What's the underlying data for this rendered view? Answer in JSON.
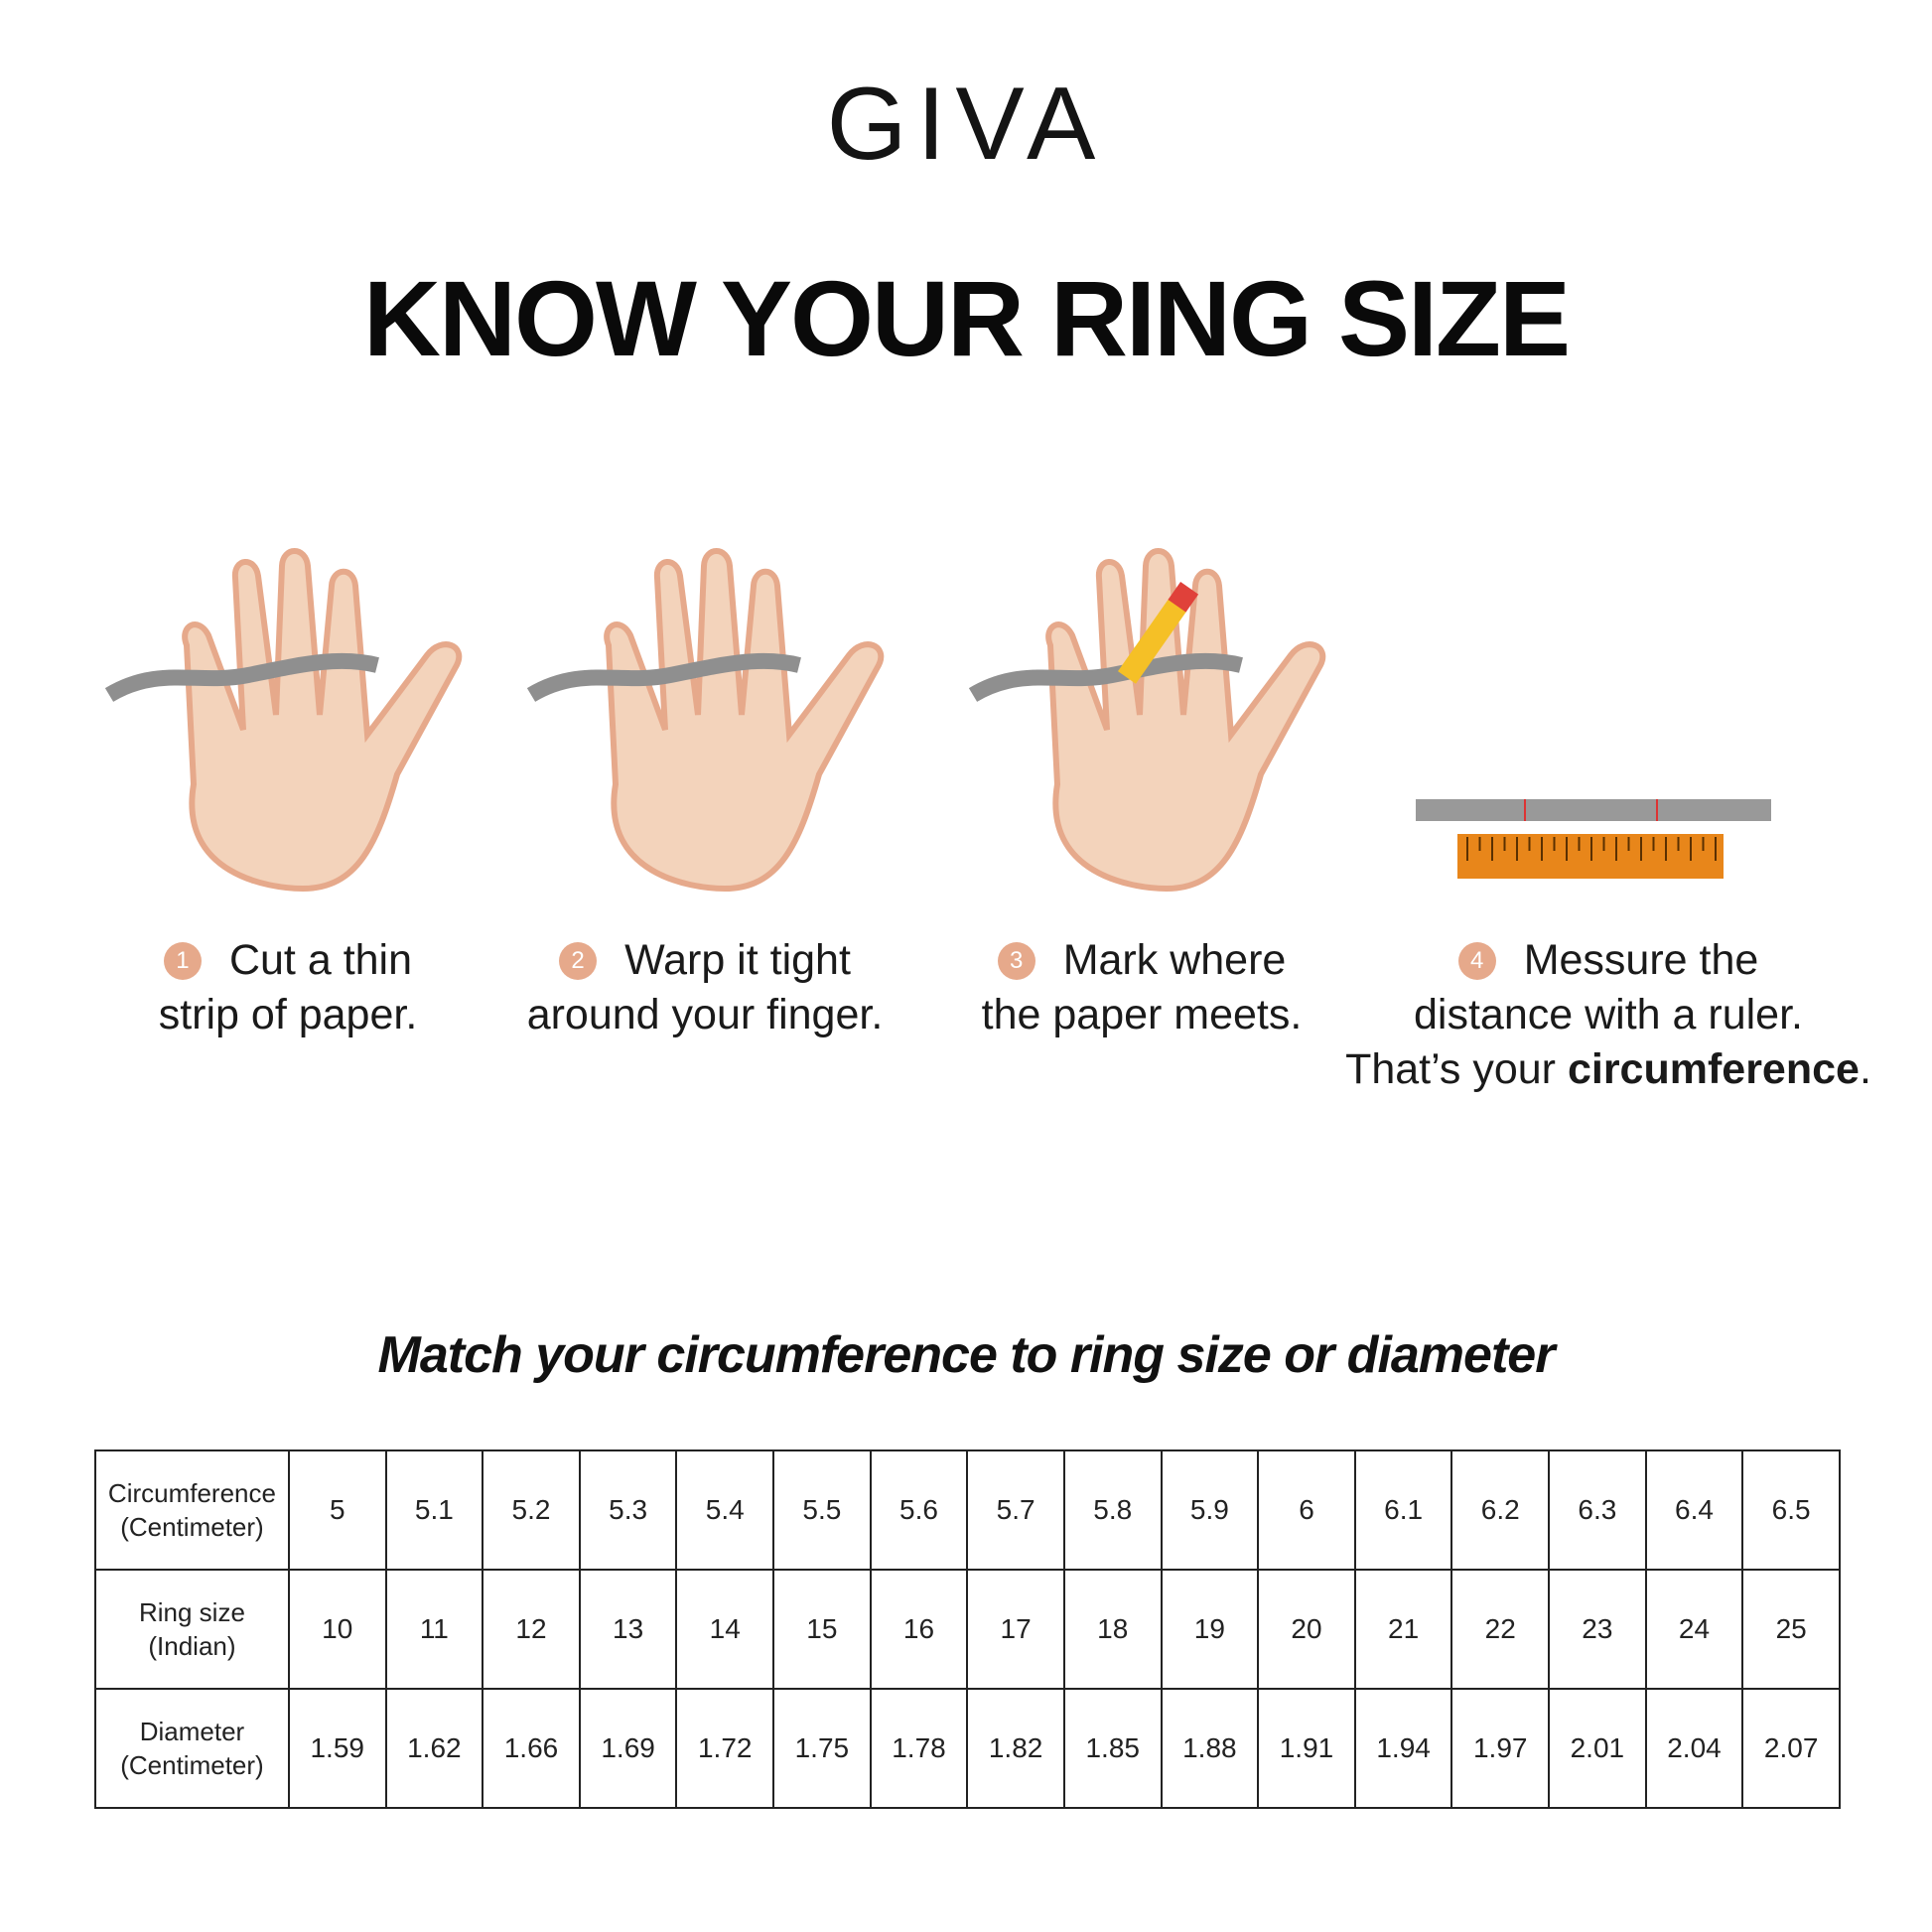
{
  "brand": "GIVA",
  "title": "KNOW YOUR RING SIZE",
  "steps": [
    {
      "num": "1",
      "line1": "Cut a thin",
      "line2": "strip of paper."
    },
    {
      "num": "2",
      "line1": "Warp it tight",
      "line2": "around your finger."
    },
    {
      "num": "3",
      "line1": "Mark where",
      "line2": "the paper meets."
    },
    {
      "num": "4",
      "line1": "Messure the",
      "line2": "distance with a ruler.",
      "line3_pre": "That’s your ",
      "line3_bold": "circumference",
      "line3_post": "."
    }
  ],
  "subtitle": "Match your circumference to ring size or diameter",
  "table": {
    "rows": [
      {
        "h1": "Circumference",
        "h2": "(Centimeter)",
        "values": [
          "5",
          "5.1",
          "5.2",
          "5.3",
          "5.4",
          "5.5",
          "5.6",
          "5.7",
          "5.8",
          "5.9",
          "6",
          "6.1",
          "6.2",
          "6.3",
          "6.4",
          "6.5"
        ]
      },
      {
        "h1": "Ring size",
        "h2": "(Indian)",
        "values": [
          "10",
          "11",
          "12",
          "13",
          "14",
          "15",
          "16",
          "17",
          "18",
          "19",
          "20",
          "21",
          "22",
          "23",
          "24",
          "25"
        ]
      },
      {
        "h1": "Diameter",
        "h2": "(Centimeter)",
        "values": [
          "1.59",
          "1.62",
          "1.66",
          "1.69",
          "1.72",
          "1.75",
          "1.78",
          "1.82",
          "1.85",
          "1.88",
          "1.91",
          "1.94",
          "1.97",
          "2.01",
          "2.04",
          "2.07"
        ]
      }
    ]
  },
  "colors": {
    "skin": "#f3d3bb",
    "skin_shadow": "#e6a98b",
    "paper": "#8f8f8f",
    "ruler": "#e8861a",
    "step_badge": "#e6a98b"
  }
}
